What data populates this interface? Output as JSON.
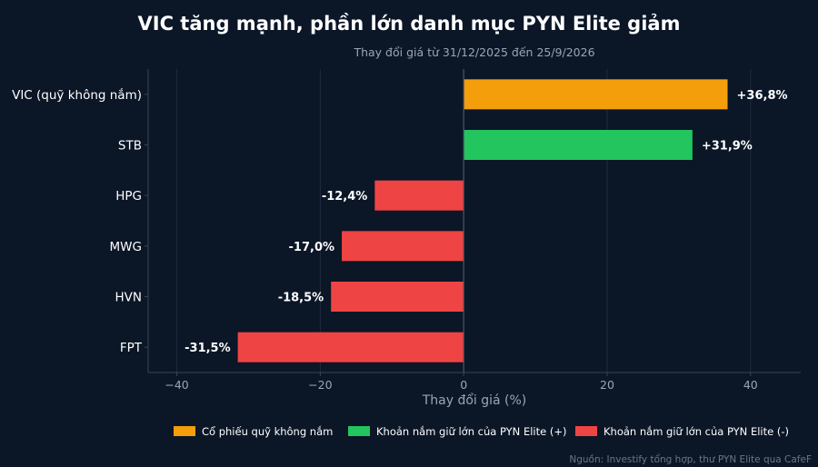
{
  "chart_data": {
    "type": "bar",
    "orientation": "horizontal",
    "title": "VIC tăng mạnh, phần lớn danh mục PYN Elite giảm",
    "subtitle": "Thay đổi giá từ 31/12/2025 đến 25/9/2026",
    "xlabel": "Thay đổi giá (%)",
    "ylabel": "",
    "xlim": [
      -44,
      47
    ],
    "xticks": [
      -40,
      -20,
      0,
      20,
      40
    ],
    "xtick_labels": [
      "−40",
      "−20",
      "0",
      "20",
      "40"
    ],
    "categories": [
      "VIC (quỹ không nắm)",
      "STB",
      "HPG",
      "MWG",
      "HVN",
      "FPT"
    ],
    "values": [
      36.8,
      31.9,
      -12.4,
      -17.0,
      -18.5,
      -31.5
    ],
    "value_labels": [
      "+36,8%",
      "+31,9%",
      "-12,4%",
      "-17,0%",
      "-18,5%",
      "-31,5%"
    ],
    "groups": [
      "vic",
      "pos",
      "neg",
      "neg",
      "neg",
      "neg"
    ],
    "grid": true,
    "legend": {
      "placement": "bottom",
      "items": [
        {
          "key": "vic",
          "label": "Cổ phiếu quỹ không nắm",
          "color": "#f59e0b"
        },
        {
          "key": "pos",
          "label": "Khoản nắm giữ lớn của PYN Elite (+)",
          "color": "#22c55e"
        },
        {
          "key": "neg",
          "label": "Khoản nắm giữ lớn của PYN Elite (-)",
          "color": "#ef4444"
        }
      ]
    },
    "source": "Nguồn: Investify tổng hợp, thư PYN Elite qua CafeF"
  }
}
